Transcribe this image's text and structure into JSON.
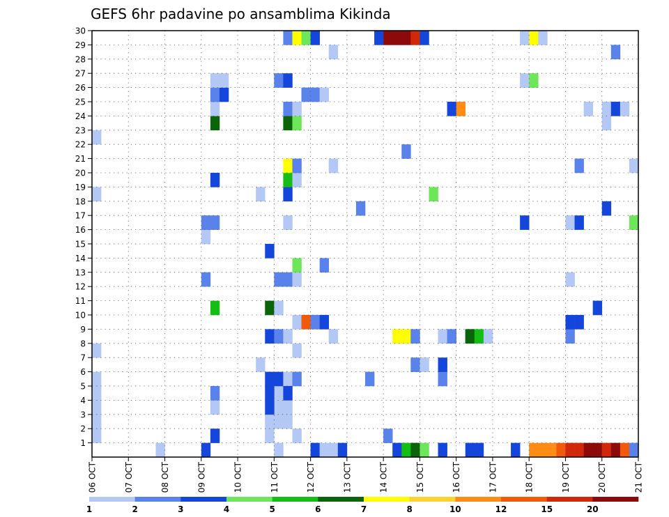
{
  "chart_data": {
    "type": "heatmap",
    "title": "GEFS 6hr padavine po ansamblima Kikinda",
    "xlabel": "",
    "ylabel": "",
    "x_tick_labels": [
      "06 OCT",
      "07 OCT",
      "08 OCT",
      "09 OCT",
      "10 OCT",
      "11 OCT",
      "12 OCT",
      "13 OCT",
      "14 OCT",
      "15 OCT",
      "16 OCT",
      "17 OCT",
      "18 OCT",
      "19 OCT",
      "20 OCT",
      "21 OCT"
    ],
    "y_tick_labels": [
      "1",
      "2",
      "3",
      "4",
      "5",
      "6",
      "7",
      "8",
      "9",
      "10",
      "11",
      "12",
      "13",
      "14",
      "15",
      "16",
      "17",
      "18",
      "19",
      "20",
      "21",
      "22",
      "23",
      "24",
      "25",
      "26",
      "27",
      "28",
      "29",
      "30"
    ],
    "grid": true,
    "x_range": [
      0,
      60
    ],
    "y_range": [
      0,
      30
    ],
    "colorbar": {
      "levels": [
        1,
        2,
        3,
        4,
        5,
        6,
        7,
        8,
        10,
        12,
        15,
        20
      ],
      "labels": [
        "1",
        "2",
        "3",
        "4",
        "5",
        "6",
        "7",
        "8",
        "10",
        "12",
        "15",
        "20"
      ],
      "colors": [
        "#b4c8f5",
        "#5a82eb",
        "#1446dc",
        "#6ee65a",
        "#14be14",
        "#0a640a",
        "#ffff00",
        "#ffd232",
        "#ff8c14",
        "#f05a0a",
        "#d2280a",
        "#8c0a0a"
      ]
    },
    "cells": [
      [
        7,
        0,
        0
      ],
      [
        12,
        0,
        2
      ],
      [
        20,
        0,
        0
      ],
      [
        24,
        0,
        2
      ],
      [
        25,
        0,
        0
      ],
      [
        26,
        0,
        0
      ],
      [
        27,
        0,
        2
      ],
      [
        33,
        0,
        2
      ],
      [
        34,
        0,
        4
      ],
      [
        35,
        0,
        5
      ],
      [
        36,
        0,
        3
      ],
      [
        38,
        0,
        2
      ],
      [
        41,
        0,
        2
      ],
      [
        42,
        0,
        2
      ],
      [
        46,
        0,
        2
      ],
      [
        48,
        0,
        8
      ],
      [
        49,
        0,
        8
      ],
      [
        50,
        0,
        8
      ],
      [
        51,
        0,
        9
      ],
      [
        52,
        0,
        10
      ],
      [
        53,
        0,
        10
      ],
      [
        54,
        0,
        11
      ],
      [
        55,
        0,
        11
      ],
      [
        56,
        0,
        10
      ],
      [
        57,
        0,
        11
      ],
      [
        58,
        0,
        9
      ],
      [
        59,
        0,
        1
      ],
      [
        0,
        1,
        0
      ],
      [
        0,
        2,
        0
      ],
      [
        0,
        3,
        0
      ],
      [
        0,
        4,
        0
      ],
      [
        0,
        5,
        0
      ],
      [
        0,
        7,
        0
      ],
      [
        0,
        18,
        0
      ],
      [
        0,
        22,
        0
      ],
      [
        13,
        1,
        2
      ],
      [
        13,
        3,
        0
      ],
      [
        13,
        4,
        1
      ],
      [
        19,
        1,
        0
      ],
      [
        19,
        2,
        0
      ],
      [
        20,
        2,
        0
      ],
      [
        20,
        3,
        0
      ],
      [
        21,
        2,
        0
      ],
      [
        21,
        3,
        0
      ],
      [
        19,
        3,
        2
      ],
      [
        20,
        4,
        0
      ],
      [
        19,
        4,
        2
      ],
      [
        19,
        5,
        2
      ],
      [
        20,
        5,
        2
      ],
      [
        21,
        5,
        0
      ],
      [
        22,
        5,
        1
      ],
      [
        21,
        4,
        2
      ],
      [
        22,
        1,
        0
      ],
      [
        32,
        1,
        1
      ],
      [
        18,
        6,
        0
      ],
      [
        22,
        7,
        0
      ],
      [
        33,
        8,
        6
      ],
      [
        34,
        8,
        6
      ],
      [
        35,
        8,
        1
      ],
      [
        30,
        5,
        1
      ],
      [
        35,
        6,
        1
      ],
      [
        36,
        6,
        0
      ],
      [
        38,
        5,
        1
      ],
      [
        38,
        6,
        2
      ],
      [
        41,
        8,
        2
      ],
      [
        52,
        8,
        1
      ],
      [
        52,
        9,
        2
      ],
      [
        53,
        9,
        2
      ],
      [
        55,
        10,
        2
      ],
      [
        19,
        8,
        2
      ],
      [
        20,
        8,
        1
      ],
      [
        21,
        8,
        0
      ],
      [
        26,
        8,
        0
      ],
      [
        38,
        8,
        0
      ],
      [
        39,
        8,
        1
      ],
      [
        41,
        8,
        5
      ],
      [
        42,
        8,
        4
      ],
      [
        43,
        8,
        0
      ],
      [
        22,
        9,
        0
      ],
      [
        23,
        9,
        9
      ],
      [
        24,
        9,
        1
      ],
      [
        25,
        9,
        2
      ],
      [
        13,
        10,
        4
      ],
      [
        19,
        10,
        5
      ],
      [
        20,
        10,
        0
      ],
      [
        12,
        12,
        1
      ],
      [
        20,
        12,
        1
      ],
      [
        21,
        12,
        1
      ],
      [
        22,
        12,
        0
      ],
      [
        52,
        12,
        0
      ],
      [
        22,
        13,
        3
      ],
      [
        25,
        13,
        1
      ],
      [
        19,
        14,
        2
      ],
      [
        12,
        15,
        0
      ],
      [
        12,
        16,
        1
      ],
      [
        13,
        16,
        1
      ],
      [
        21,
        16,
        0
      ],
      [
        47,
        16,
        2
      ],
      [
        52,
        16,
        0
      ],
      [
        53,
        16,
        2
      ],
      [
        59,
        16,
        3
      ],
      [
        29,
        17,
        1
      ],
      [
        56,
        17,
        2
      ],
      [
        37,
        18,
        3
      ],
      [
        18,
        18,
        0
      ],
      [
        21,
        18,
        2
      ],
      [
        13,
        19,
        2
      ],
      [
        21,
        19,
        4
      ],
      [
        22,
        19,
        0
      ],
      [
        21,
        20,
        6
      ],
      [
        22,
        20,
        1
      ],
      [
        26,
        20,
        0
      ],
      [
        53,
        20,
        1
      ],
      [
        59,
        20,
        0
      ],
      [
        34,
        21,
        1
      ],
      [
        13,
        23,
        5
      ],
      [
        21,
        23,
        5
      ],
      [
        22,
        23,
        3
      ],
      [
        56,
        23,
        0
      ],
      [
        13,
        24,
        0
      ],
      [
        21,
        24,
        1
      ],
      [
        22,
        24,
        0
      ],
      [
        39,
        24,
        2
      ],
      [
        40,
        24,
        8
      ],
      [
        54,
        24,
        0
      ],
      [
        56,
        24,
        0
      ],
      [
        57,
        24,
        2
      ],
      [
        58,
        24,
        0
      ],
      [
        13,
        25,
        1
      ],
      [
        14,
        25,
        2
      ],
      [
        23,
        25,
        1
      ],
      [
        24,
        25,
        1
      ],
      [
        25,
        25,
        0
      ],
      [
        13,
        26,
        0
      ],
      [
        14,
        26,
        0
      ],
      [
        20,
        26,
        1
      ],
      [
        21,
        26,
        2
      ],
      [
        47,
        26,
        0
      ],
      [
        48,
        26,
        3
      ],
      [
        26,
        28,
        0
      ],
      [
        57,
        28,
        1
      ],
      [
        21,
        29,
        1
      ],
      [
        22,
        29,
        6
      ],
      [
        23,
        29,
        3
      ],
      [
        24,
        29,
        2
      ],
      [
        31,
        29,
        2
      ],
      [
        32,
        29,
        11
      ],
      [
        33,
        29,
        11
      ],
      [
        34,
        29,
        11
      ],
      [
        35,
        29,
        10
      ],
      [
        36,
        29,
        2
      ],
      [
        47,
        29,
        0
      ],
      [
        48,
        29,
        6
      ],
      [
        49,
        29,
        0
      ]
    ]
  }
}
